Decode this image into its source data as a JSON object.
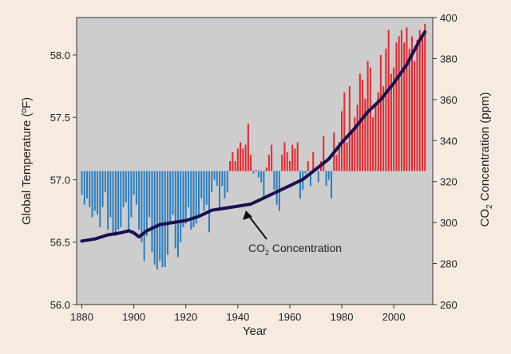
{
  "chart_data": {
    "type": "bar",
    "xlabel": "Year",
    "ylabel_left": "Global Temperature (ºF)",
    "ylabel_right_parts": [
      "CO",
      "2",
      " Concentration (ppm)"
    ],
    "annotation_parts": [
      "CO",
      "2",
      " Concentration"
    ],
    "xlim": [
      1878,
      2015
    ],
    "ylim_left": [
      56.0,
      58.3
    ],
    "ylim_right": [
      260,
      400
    ],
    "baseline": 57.07,
    "x_ticks": [
      1880,
      1900,
      1920,
      1940,
      1960,
      1980,
      2000
    ],
    "y_ticks_left": [
      56.0,
      56.5,
      57.0,
      57.5,
      58.0
    ],
    "y_ticks_left_labels": [
      "56.0",
      "56.5",
      "57.0",
      "57.5",
      "58.0"
    ],
    "y_ticks_right": [
      260,
      280,
      300,
      320,
      340,
      360,
      380,
      400
    ],
    "colors": {
      "warm": "#e8262d",
      "cool": "#2a7fc4",
      "line": "#1a1050",
      "panel": "#cdcdcd"
    },
    "series": [
      {
        "name": "Global Temperature",
        "axis": "left",
        "years": [
          1880,
          1881,
          1882,
          1883,
          1884,
          1885,
          1886,
          1887,
          1888,
          1889,
          1890,
          1891,
          1892,
          1893,
          1894,
          1895,
          1896,
          1897,
          1898,
          1899,
          1900,
          1901,
          1902,
          1903,
          1904,
          1905,
          1906,
          1907,
          1908,
          1909,
          1910,
          1911,
          1912,
          1913,
          1914,
          1915,
          1916,
          1917,
          1918,
          1919,
          1920,
          1921,
          1922,
          1923,
          1924,
          1925,
          1926,
          1927,
          1928,
          1929,
          1930,
          1931,
          1932,
          1933,
          1934,
          1935,
          1936,
          1937,
          1938,
          1939,
          1940,
          1941,
          1942,
          1943,
          1944,
          1945,
          1946,
          1947,
          1948,
          1949,
          1950,
          1951,
          1952,
          1953,
          1954,
          1955,
          1956,
          1957,
          1958,
          1959,
          1960,
          1961,
          1962,
          1963,
          1964,
          1965,
          1966,
          1967,
          1968,
          1969,
          1970,
          1971,
          1972,
          1973,
          1974,
          1975,
          1976,
          1977,
          1978,
          1979,
          1980,
          1981,
          1982,
          1983,
          1984,
          1985,
          1986,
          1987,
          1988,
          1989,
          1990,
          1991,
          1992,
          1993,
          1994,
          1995,
          1996,
          1997,
          1998,
          1999,
          2000,
          2001,
          2002,
          2003,
          2004,
          2005,
          2006,
          2007,
          2008,
          2009,
          2010,
          2011,
          2012
        ],
        "values": [
          56.88,
          56.8,
          56.85,
          56.78,
          56.7,
          56.75,
          56.72,
          56.62,
          56.78,
          56.9,
          56.6,
          56.7,
          56.58,
          56.55,
          56.6,
          56.62,
          56.78,
          56.82,
          56.6,
          56.7,
          56.88,
          56.8,
          56.6,
          56.5,
          56.35,
          56.55,
          56.7,
          56.42,
          56.32,
          56.28,
          56.35,
          56.3,
          56.3,
          56.4,
          56.65,
          56.72,
          56.45,
          56.38,
          56.5,
          56.62,
          56.65,
          56.78,
          56.6,
          56.62,
          56.65,
          56.7,
          56.85,
          56.75,
          56.8,
          56.58,
          56.9,
          57.0,
          56.95,
          56.75,
          56.95,
          56.85,
          56.9,
          57.15,
          57.22,
          57.15,
          57.25,
          57.3,
          57.25,
          57.28,
          57.45,
          57.2,
          57.05,
          57.08,
          57.02,
          56.98,
          56.85,
          57.1,
          57.2,
          57.28,
          56.92,
          56.8,
          56.75,
          57.2,
          57.3,
          57.22,
          57.15,
          57.28,
          57.25,
          57.3,
          56.85,
          56.92,
          57.05,
          57.15,
          56.95,
          57.22,
          57.1,
          56.98,
          57.15,
          57.35,
          56.95,
          57.0,
          56.85,
          57.38,
          57.2,
          57.3,
          57.55,
          57.7,
          57.3,
          57.75,
          57.4,
          57.5,
          57.6,
          57.85,
          57.8,
          57.65,
          57.95,
          57.9,
          57.5,
          57.6,
          57.7,
          58.0,
          57.75,
          58.05,
          58.2,
          57.85,
          57.9,
          58.1,
          58.15,
          58.2,
          58.1,
          58.22,
          58.05,
          58.15,
          57.95,
          58.12,
          58.2,
          58.15,
          58.25
        ]
      },
      {
        "name": "CO2 Concentration",
        "axis": "right",
        "years": [
          1880,
          1885,
          1890,
          1895,
          1898,
          1900,
          1902,
          1905,
          1910,
          1915,
          1920,
          1925,
          1930,
          1935,
          1940,
          1945,
          1950,
          1955,
          1960,
          1965,
          1970,
          1975,
          1980,
          1985,
          1990,
          1995,
          2000,
          2005,
          2010,
          2012
        ],
        "values": [
          291,
          292,
          294,
          295,
          296,
          295,
          293,
          296,
          299,
          300,
          301,
          303,
          306,
          307,
          308,
          309,
          312,
          315,
          318,
          321,
          326,
          331,
          339,
          346,
          354,
          360,
          368,
          377,
          389,
          393
        ]
      }
    ]
  }
}
